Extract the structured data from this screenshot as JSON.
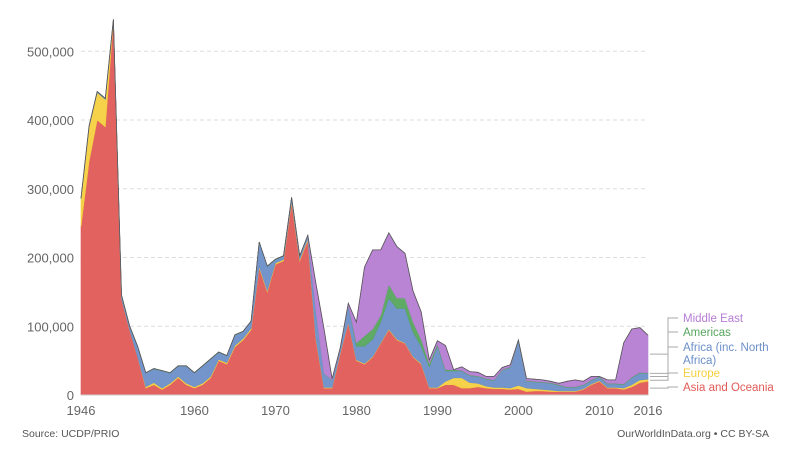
{
  "chart_data": {
    "type": "area",
    "stacked": true,
    "title": "",
    "xlabel": "",
    "ylabel": "",
    "xlim": [
      1946,
      2016
    ],
    "ylim": [
      0,
      560000
    ],
    "yticks": [
      0,
      100000,
      200000,
      300000,
      400000,
      500000
    ],
    "ytick_labels": [
      "0",
      "100,000",
      "200,000",
      "300,000",
      "400,000",
      "500,000"
    ],
    "xticks": [
      1946,
      1960,
      1970,
      1980,
      1990,
      2000,
      2010,
      2016
    ],
    "xtick_labels": [
      "1946",
      "1960",
      "1970",
      "1980",
      "1990",
      "2000",
      "2010",
      "2016"
    ],
    "grid": true,
    "legend_position": "right",
    "x": [
      1946,
      1947,
      1948,
      1949,
      1950,
      1951,
      1952,
      1953,
      1954,
      1955,
      1956,
      1957,
      1958,
      1959,
      1960,
      1961,
      1962,
      1963,
      1964,
      1965,
      1966,
      1967,
      1968,
      1969,
      1970,
      1971,
      1972,
      1973,
      1974,
      1975,
      1976,
      1977,
      1978,
      1979,
      1980,
      1981,
      1982,
      1983,
      1984,
      1985,
      1986,
      1987,
      1988,
      1989,
      1990,
      1991,
      1992,
      1993,
      1994,
      1995,
      1996,
      1997,
      1998,
      1999,
      2000,
      2001,
      2002,
      2003,
      2004,
      2005,
      2006,
      2007,
      2008,
      2009,
      2010,
      2011,
      2012,
      2013,
      2014,
      2015,
      2016
    ],
    "series": [
      {
        "name": "Asia and Oceania",
        "color": "#e05a56",
        "values": [
          245000,
          340000,
          400000,
          390000,
          545000,
          140000,
          95000,
          55000,
          10000,
          15000,
          8000,
          15000,
          25000,
          15000,
          10000,
          15000,
          25000,
          50000,
          45000,
          70000,
          80000,
          95000,
          185000,
          150000,
          190000,
          195000,
          280000,
          195000,
          225000,
          80000,
          10000,
          10000,
          60000,
          105000,
          50000,
          45000,
          55000,
          75000,
          95000,
          80000,
          75000,
          55000,
          45000,
          10000,
          10000,
          15000,
          15000,
          10000,
          10000,
          12000,
          10000,
          9000,
          9000,
          8000,
          9000,
          5000,
          6000,
          6000,
          5000,
          5000,
          5000,
          5000,
          8000,
          15000,
          20000,
          10000,
          10000,
          8000,
          12000,
          18000,
          20000
        ]
      },
      {
        "name": "Europe",
        "color": "#f4d03f",
        "values": [
          40000,
          50000,
          40000,
          40000,
          0,
          0,
          0,
          0,
          2000,
          3000,
          2000,
          2000,
          2000,
          2000,
          2000,
          2000,
          2000,
          2000,
          2000,
          2000,
          2000,
          2000,
          2000,
          2000,
          2000,
          2000,
          2000,
          2000,
          2000,
          2000,
          1000,
          1000,
          1000,
          1000,
          1000,
          1000,
          1000,
          1000,
          1000,
          1000,
          1000,
          1000,
          1000,
          1000,
          1000,
          5000,
          10000,
          15000,
          8000,
          5000,
          3000,
          2000,
          2000,
          2000,
          5000,
          5000,
          3000,
          2000,
          2000,
          1000,
          1000,
          1000,
          1000,
          1000,
          1000,
          1000,
          1000,
          2000,
          3000,
          4000,
          3000
        ]
      },
      {
        "name": "Africa (inc. North Africa)",
        "color": "#6b8fc9",
        "values": [
          1000,
          1000,
          1000,
          1000,
          1000,
          5000,
          5000,
          15000,
          20000,
          20000,
          25000,
          15000,
          15000,
          25000,
          20000,
          25000,
          25000,
          10000,
          10000,
          15000,
          10000,
          10000,
          35000,
          35000,
          5000,
          5000,
          5000,
          5000,
          5000,
          40000,
          20000,
          10000,
          5000,
          25000,
          20000,
          25000,
          25000,
          30000,
          45000,
          45000,
          50000,
          35000,
          25000,
          30000,
          60000,
          15000,
          10000,
          10000,
          10000,
          10000,
          10000,
          10000,
          25000,
          30000,
          65000,
          10000,
          10000,
          10000,
          10000,
          8000,
          5000,
          5000,
          5000,
          5000,
          5000,
          5000,
          5000,
          5000,
          10000,
          10000,
          8000
        ]
      },
      {
        "name": "Americas",
        "color": "#56a55d",
        "values": [
          500,
          500,
          500,
          500,
          500,
          500,
          500,
          500,
          500,
          500,
          500,
          500,
          500,
          500,
          500,
          500,
          500,
          500,
          500,
          500,
          500,
          500,
          500,
          500,
          500,
          500,
          500,
          500,
          500,
          500,
          500,
          500,
          500,
          500,
          5000,
          15000,
          15000,
          10000,
          20000,
          15000,
          15000,
          15000,
          10000,
          5000,
          3000,
          2000,
          2000,
          1000,
          1000,
          1000,
          1000,
          1000,
          1000,
          1000,
          1000,
          1000,
          1000,
          1000,
          1000,
          1000,
          1000,
          1000,
          1000,
          1000,
          1000,
          1000,
          1000,
          1000,
          1000,
          1000,
          1000
        ]
      },
      {
        "name": "Middle East",
        "color": "#b67dd3",
        "values": [
          0,
          0,
          0,
          0,
          0,
          0,
          0,
          0,
          0,
          0,
          0,
          0,
          0,
          0,
          0,
          0,
          0,
          0,
          0,
          0,
          0,
          0,
          0,
          0,
          0,
          0,
          0,
          0,
          0,
          40000,
          65000,
          2000,
          2000,
          2000,
          30000,
          100000,
          115000,
          95000,
          75000,
          75000,
          65000,
          45000,
          40000,
          5000,
          5000,
          35000,
          0,
          5000,
          5000,
          5000,
          3000,
          5000,
          3000,
          3000,
          0,
          3000,
          3000,
          3000,
          2000,
          2000,
          8000,
          10000,
          5000,
          5000,
          0,
          5000,
          5000,
          60000,
          70000,
          65000,
          55000
        ]
      }
    ]
  },
  "footer": {
    "source": "Source: UCDP/PRIO",
    "credit": "OurWorldInData.org • CC BY-SA"
  }
}
